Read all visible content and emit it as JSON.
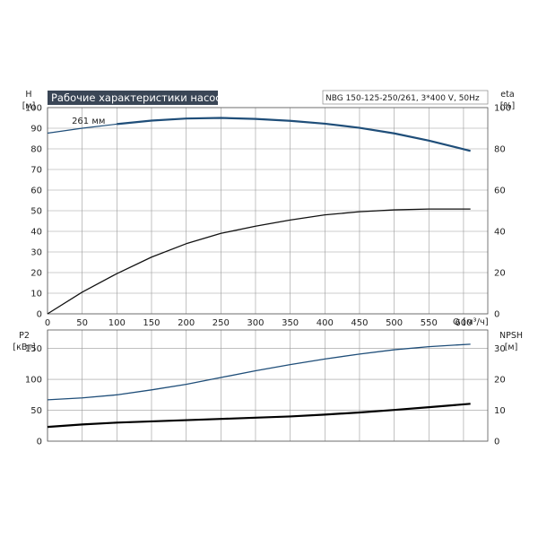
{
  "chart_data": {
    "type": "line",
    "title": "Рабочие характеристики насоса",
    "model": "NBG 150-125-250/261, 3*400 V, 50Hz",
    "xlabel": "Q [м³/ч]",
    "x_ticks": [
      0,
      50,
      100,
      150,
      200,
      250,
      300,
      350,
      400,
      450,
      500,
      550,
      600
    ],
    "xlim": [
      0,
      635
    ],
    "grid": true,
    "panels": [
      {
        "name": "top",
        "left_axis": {
          "label_top": "H",
          "label_unit": "[м]",
          "range": [
            0,
            100
          ],
          "ticks": [
            0,
            10,
            20,
            30,
            40,
            50,
            60,
            70,
            80,
            90,
            100
          ]
        },
        "right_axis": {
          "label_top": "eta",
          "label_unit": "[%]",
          "range": [
            0,
            100
          ],
          "ticks": [
            0,
            20,
            40,
            60,
            80,
            100
          ]
        },
        "series": [
          {
            "name": "261 мм",
            "axis": "left",
            "color": "#1f4e79",
            "points": [
              [
                0,
                87.6
              ],
              [
                50,
                90.0
              ],
              [
                100,
                92.0
              ],
              [
                150,
                93.7
              ],
              [
                200,
                94.7
              ],
              [
                250,
                95.0
              ],
              [
                300,
                94.5
              ],
              [
                350,
                93.6
              ],
              [
                400,
                92.2
              ],
              [
                450,
                90.2
              ],
              [
                500,
                87.5
              ],
              [
                550,
                84.0
              ],
              [
                610,
                79.0
              ]
            ],
            "dashed_until": 80,
            "label_at": [
              35,
              92.2
            ]
          },
          {
            "name": "eta",
            "axis": "right",
            "color": "#111111",
            "points": [
              [
                0,
                0
              ],
              [
                50,
                10.5
              ],
              [
                100,
                19.5
              ],
              [
                150,
                27.5
              ],
              [
                200,
                34
              ],
              [
                250,
                39
              ],
              [
                300,
                42.5
              ],
              [
                350,
                45.5
              ],
              [
                400,
                48
              ],
              [
                450,
                49.5
              ],
              [
                500,
                50.4
              ],
              [
                550,
                50.8
              ],
              [
                610,
                50.8
              ]
            ]
          }
        ]
      },
      {
        "name": "bottom",
        "left_axis": {
          "label_top": "P2",
          "label_unit": "[кВт]",
          "range": [
            0,
            180
          ],
          "ticks": [
            0,
            50,
            100,
            150
          ]
        },
        "right_axis": {
          "label_top": "NPSH",
          "label_unit": "[м]",
          "range": [
            0,
            36
          ],
          "ticks": [
            0,
            10,
            20,
            30
          ]
        },
        "series": [
          {
            "name": "P2",
            "axis": "left",
            "color": "#1f4e79",
            "points": [
              [
                0,
                67
              ],
              [
                50,
                70
              ],
              [
                100,
                75
              ],
              [
                150,
                83
              ],
              [
                200,
                92
              ],
              [
                250,
                103
              ],
              [
                300,
                114
              ],
              [
                350,
                124
              ],
              [
                400,
                133
              ],
              [
                450,
                141
              ],
              [
                500,
                148
              ],
              [
                550,
                153
              ],
              [
                610,
                157
              ]
            ]
          },
          {
            "name": "NPSH",
            "axis": "right",
            "color": "#000000",
            "points": [
              [
                0,
                4.6
              ],
              [
                50,
                5.4
              ],
              [
                100,
                6.0
              ],
              [
                150,
                6.4
              ],
              [
                200,
                6.8
              ],
              [
                250,
                7.2
              ],
              [
                300,
                7.6
              ],
              [
                350,
                8.0
              ],
              [
                400,
                8.6
              ],
              [
                450,
                9.3
              ],
              [
                500,
                10.1
              ],
              [
                550,
                11.0
              ],
              [
                610,
                12.1
              ]
            ]
          }
        ]
      }
    ]
  }
}
